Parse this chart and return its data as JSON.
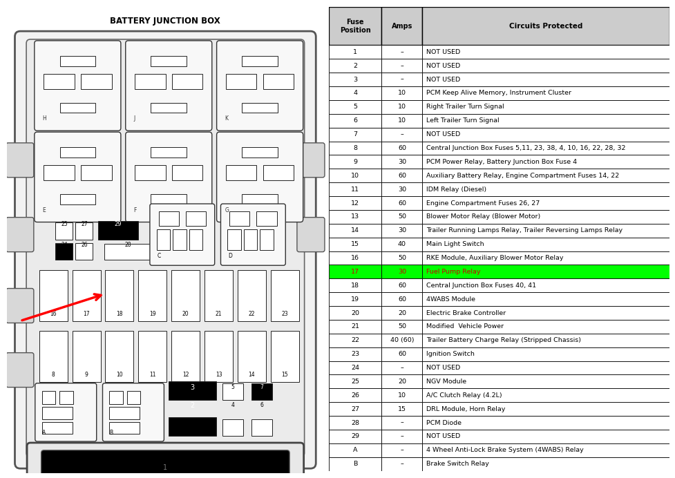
{
  "title": "BATTERY JUNCTION BOX",
  "rows": [
    [
      "1",
      "–",
      "NOT USED"
    ],
    [
      "2",
      "–",
      "NOT USED"
    ],
    [
      "3",
      "–",
      "NOT USED"
    ],
    [
      "4",
      "10",
      "PCM Keep Alive Memory, Instrument Cluster"
    ],
    [
      "5",
      "10",
      "Right Trailer Turn Signal"
    ],
    [
      "6",
      "10",
      "Left Trailer Turn Signal"
    ],
    [
      "7",
      "–",
      "NOT USED"
    ],
    [
      "8",
      "60",
      "Central Junction Box Fuses 5,11, 23, 38, 4, 10, 16, 22, 28, 32"
    ],
    [
      "9",
      "30",
      "PCM Power Relay, Battery Junction Box Fuse 4"
    ],
    [
      "10",
      "60",
      "Auxiliary Battery Relay, Engine Compartment Fuses 14, 22"
    ],
    [
      "11",
      "30",
      "IDM Relay (Diesel)"
    ],
    [
      "12",
      "60",
      "Engine Compartment Fuses 26, 27"
    ],
    [
      "13",
      "50",
      "Blower Motor Relay (Blower Motor)"
    ],
    [
      "14",
      "30",
      "Trailer Running Lamps Relay, Trailer Reversing Lamps Relay"
    ],
    [
      "15",
      "40",
      "Main Light Switch"
    ],
    [
      "16",
      "50",
      "RKE Module, Auxiliary Blower Motor Relay"
    ],
    [
      "17",
      "30",
      "Fuel Pump Relay"
    ],
    [
      "18",
      "60",
      "Central Junction Box Fuses 40, 41"
    ],
    [
      "19",
      "60",
      "4WABS Module"
    ],
    [
      "20",
      "20",
      "Electric Brake Controller"
    ],
    [
      "21",
      "50",
      "Modified  Vehicle Power"
    ],
    [
      "22",
      "40 (60)",
      "Trailer Battery Charge Relay (Stripped Chassis)"
    ],
    [
      "23",
      "60",
      "Ignition Switch"
    ],
    [
      "24",
      "–",
      "NOT USED"
    ],
    [
      "25",
      "20",
      "NGV Module"
    ],
    [
      "26",
      "10",
      "A/C Clutch Relay (4.2L)"
    ],
    [
      "27",
      "15",
      "DRL Module, Horn Relay"
    ],
    [
      "28",
      "–",
      "PCM Diode"
    ],
    [
      "29",
      "–",
      "NOT USED"
    ],
    [
      "A",
      "–",
      "4 Wheel Anti-Lock Brake System (4WABS) Relay"
    ],
    [
      "B",
      "–",
      "Brake Switch Relay"
    ]
  ],
  "highlight_row": 16,
  "highlight_color": "#00ff00",
  "highlight_text_color": "#cc0000",
  "bg_color": "#ffffff"
}
